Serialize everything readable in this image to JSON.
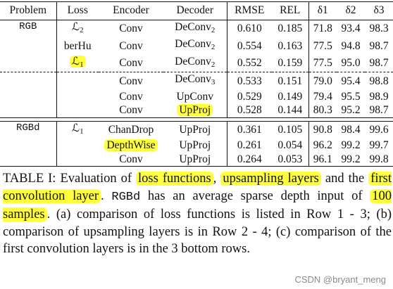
{
  "table": {
    "headers": [
      "Problem",
      "Loss",
      "Encoder",
      "Decoder",
      "RMSE",
      "REL",
      "δ1",
      "δ2",
      "δ3"
    ],
    "groups": [
      {
        "problem": "RGB",
        "rows": [
          {
            "loss": "ℒ2",
            "encoder": "Conv",
            "decoder": "DeConv2",
            "rmse": "0.610",
            "rel": "0.185",
            "d1": "71.8",
            "d2": "93.4",
            "d3": "98.3"
          },
          {
            "loss": "berHu",
            "encoder": "Conv",
            "decoder": "DeConv2",
            "rmse": "0.554",
            "rel": "0.163",
            "d1": "77.5",
            "d2": "94.8",
            "d3": "98.7"
          },
          {
            "loss": "ℒ1",
            "encoder": "Conv",
            "decoder": "DeConv2",
            "rmse": "0.552",
            "rel": "0.159",
            "d1": "77.5",
            "d2": "95.0",
            "d3": "98.7"
          },
          {
            "loss": "",
            "encoder": "Conv",
            "decoder": "DeConv3",
            "rmse": "0.533",
            "rel": "0.151",
            "d1": "79.0",
            "d2": "95.4",
            "d3": "98.8"
          },
          {
            "loss": "",
            "encoder": "Conv",
            "decoder": "UpConv",
            "rmse": "0.529",
            "rel": "0.149",
            "d1": "79.4",
            "d2": "95.5",
            "d3": "98.9"
          },
          {
            "loss": "",
            "encoder": "Conv",
            "decoder": "UpProj",
            "rmse": "0.528",
            "rel": "0.144",
            "d1": "80.3",
            "d2": "95.2",
            "d3": "98.7"
          }
        ]
      },
      {
        "problem": "RGBd",
        "rows": [
          {
            "loss": "ℒ1",
            "encoder": "ChanDrop",
            "decoder": "UpProj",
            "rmse": "0.361",
            "rel": "0.105",
            "d1": "90.8",
            "d2": "98.4",
            "d3": "99.6"
          },
          {
            "loss": "",
            "encoder": "DepthWise",
            "decoder": "UpProj",
            "rmse": "0.261",
            "rel": "0.054",
            "d1": "96.2",
            "d2": "99.2",
            "d3": "99.7"
          },
          {
            "loss": "",
            "encoder": "Conv",
            "decoder": "UpProj",
            "rmse": "0.264",
            "rel": "0.053",
            "d1": "96.1",
            "d2": "99.2",
            "d3": "99.8"
          }
        ]
      }
    ]
  },
  "caption": {
    "p1": "TABLE I: Evaluation of ",
    "h1": "loss functions",
    "p2": ", ",
    "h2": "upsampling layers",
    "p3": " and the ",
    "h3": "first convolution layer",
    "p4": ". ",
    "mono": "RGBd",
    "p5": " has an average sparse depth input of ",
    "h4": "100 samples",
    "p6": ". (a) comparison of loss functions is listed in Row 1 - 3; (b) comparison of upsampling layers is in Row 2 - 4; (c) comparison of the first convolution layers is in the 3 bottom rows."
  },
  "watermark": "CSDN @bryant_meng",
  "highlight_color": "#ffff3c"
}
